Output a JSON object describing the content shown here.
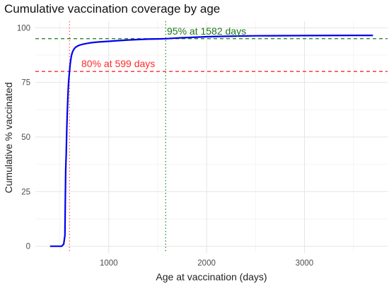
{
  "chart_data": {
    "type": "line",
    "title": "Cumulative vaccination coverage by age",
    "xlabel": "Age at vaccination (days)",
    "ylabel": "Cumulative % vaccinated",
    "xlim": [
      250,
      3850
    ],
    "ylim": [
      -3,
      103
    ],
    "x_ticks": [
      1000,
      2000,
      3000
    ],
    "x_minor_ticks": [
      500,
      1500,
      2500,
      3500
    ],
    "y_ticks": [
      0,
      25,
      50,
      75,
      100
    ],
    "y_minor_ticks": [
      12.5,
      37.5,
      62.5,
      87.5
    ],
    "grid": true,
    "legend": "none",
    "series": [
      {
        "color": "#0000ee",
        "x": [
          400,
          520,
          540,
          552,
          556,
          560,
          565,
          570,
          575,
          580,
          585,
          590,
          595,
          599,
          605,
          612,
          620,
          630,
          645,
          660,
          680,
          700,
          730,
          760,
          800,
          850,
          900,
          1000,
          1100,
          1200,
          1300,
          1400,
          1500,
          1582,
          1700,
          1800,
          1900,
          2000,
          2200,
          2500,
          3000,
          3500,
          3700
        ],
        "y": [
          0,
          0,
          1,
          5,
          20,
          35,
          42,
          52,
          60,
          66,
          71,
          75,
          78,
          80,
          83,
          85.5,
          87.5,
          89,
          90.2,
          91,
          91.6,
          92,
          92.4,
          92.7,
          93,
          93.3,
          93.5,
          93.8,
          94.1,
          94.4,
          94.6,
          94.8,
          94.9,
          95,
          95.3,
          95.5,
          95.7,
          95.9,
          96.1,
          96.3,
          96.4,
          96.5,
          96.5
        ]
      }
    ],
    "annotations": {
      "h80": {
        "y": 80,
        "color": "#ff2a2a",
        "style": "dashed",
        "label": "80% at 599 days"
      },
      "h95": {
        "y": 95,
        "color": "#1a7a1a",
        "style": "dashed",
        "label": "95% at 1582 days"
      },
      "v80": {
        "x": 599,
        "color": "#ff5a5a",
        "style": "dotted"
      },
      "v95": {
        "x": 1582,
        "color": "#2a8a2a",
        "style": "dotted"
      }
    }
  }
}
